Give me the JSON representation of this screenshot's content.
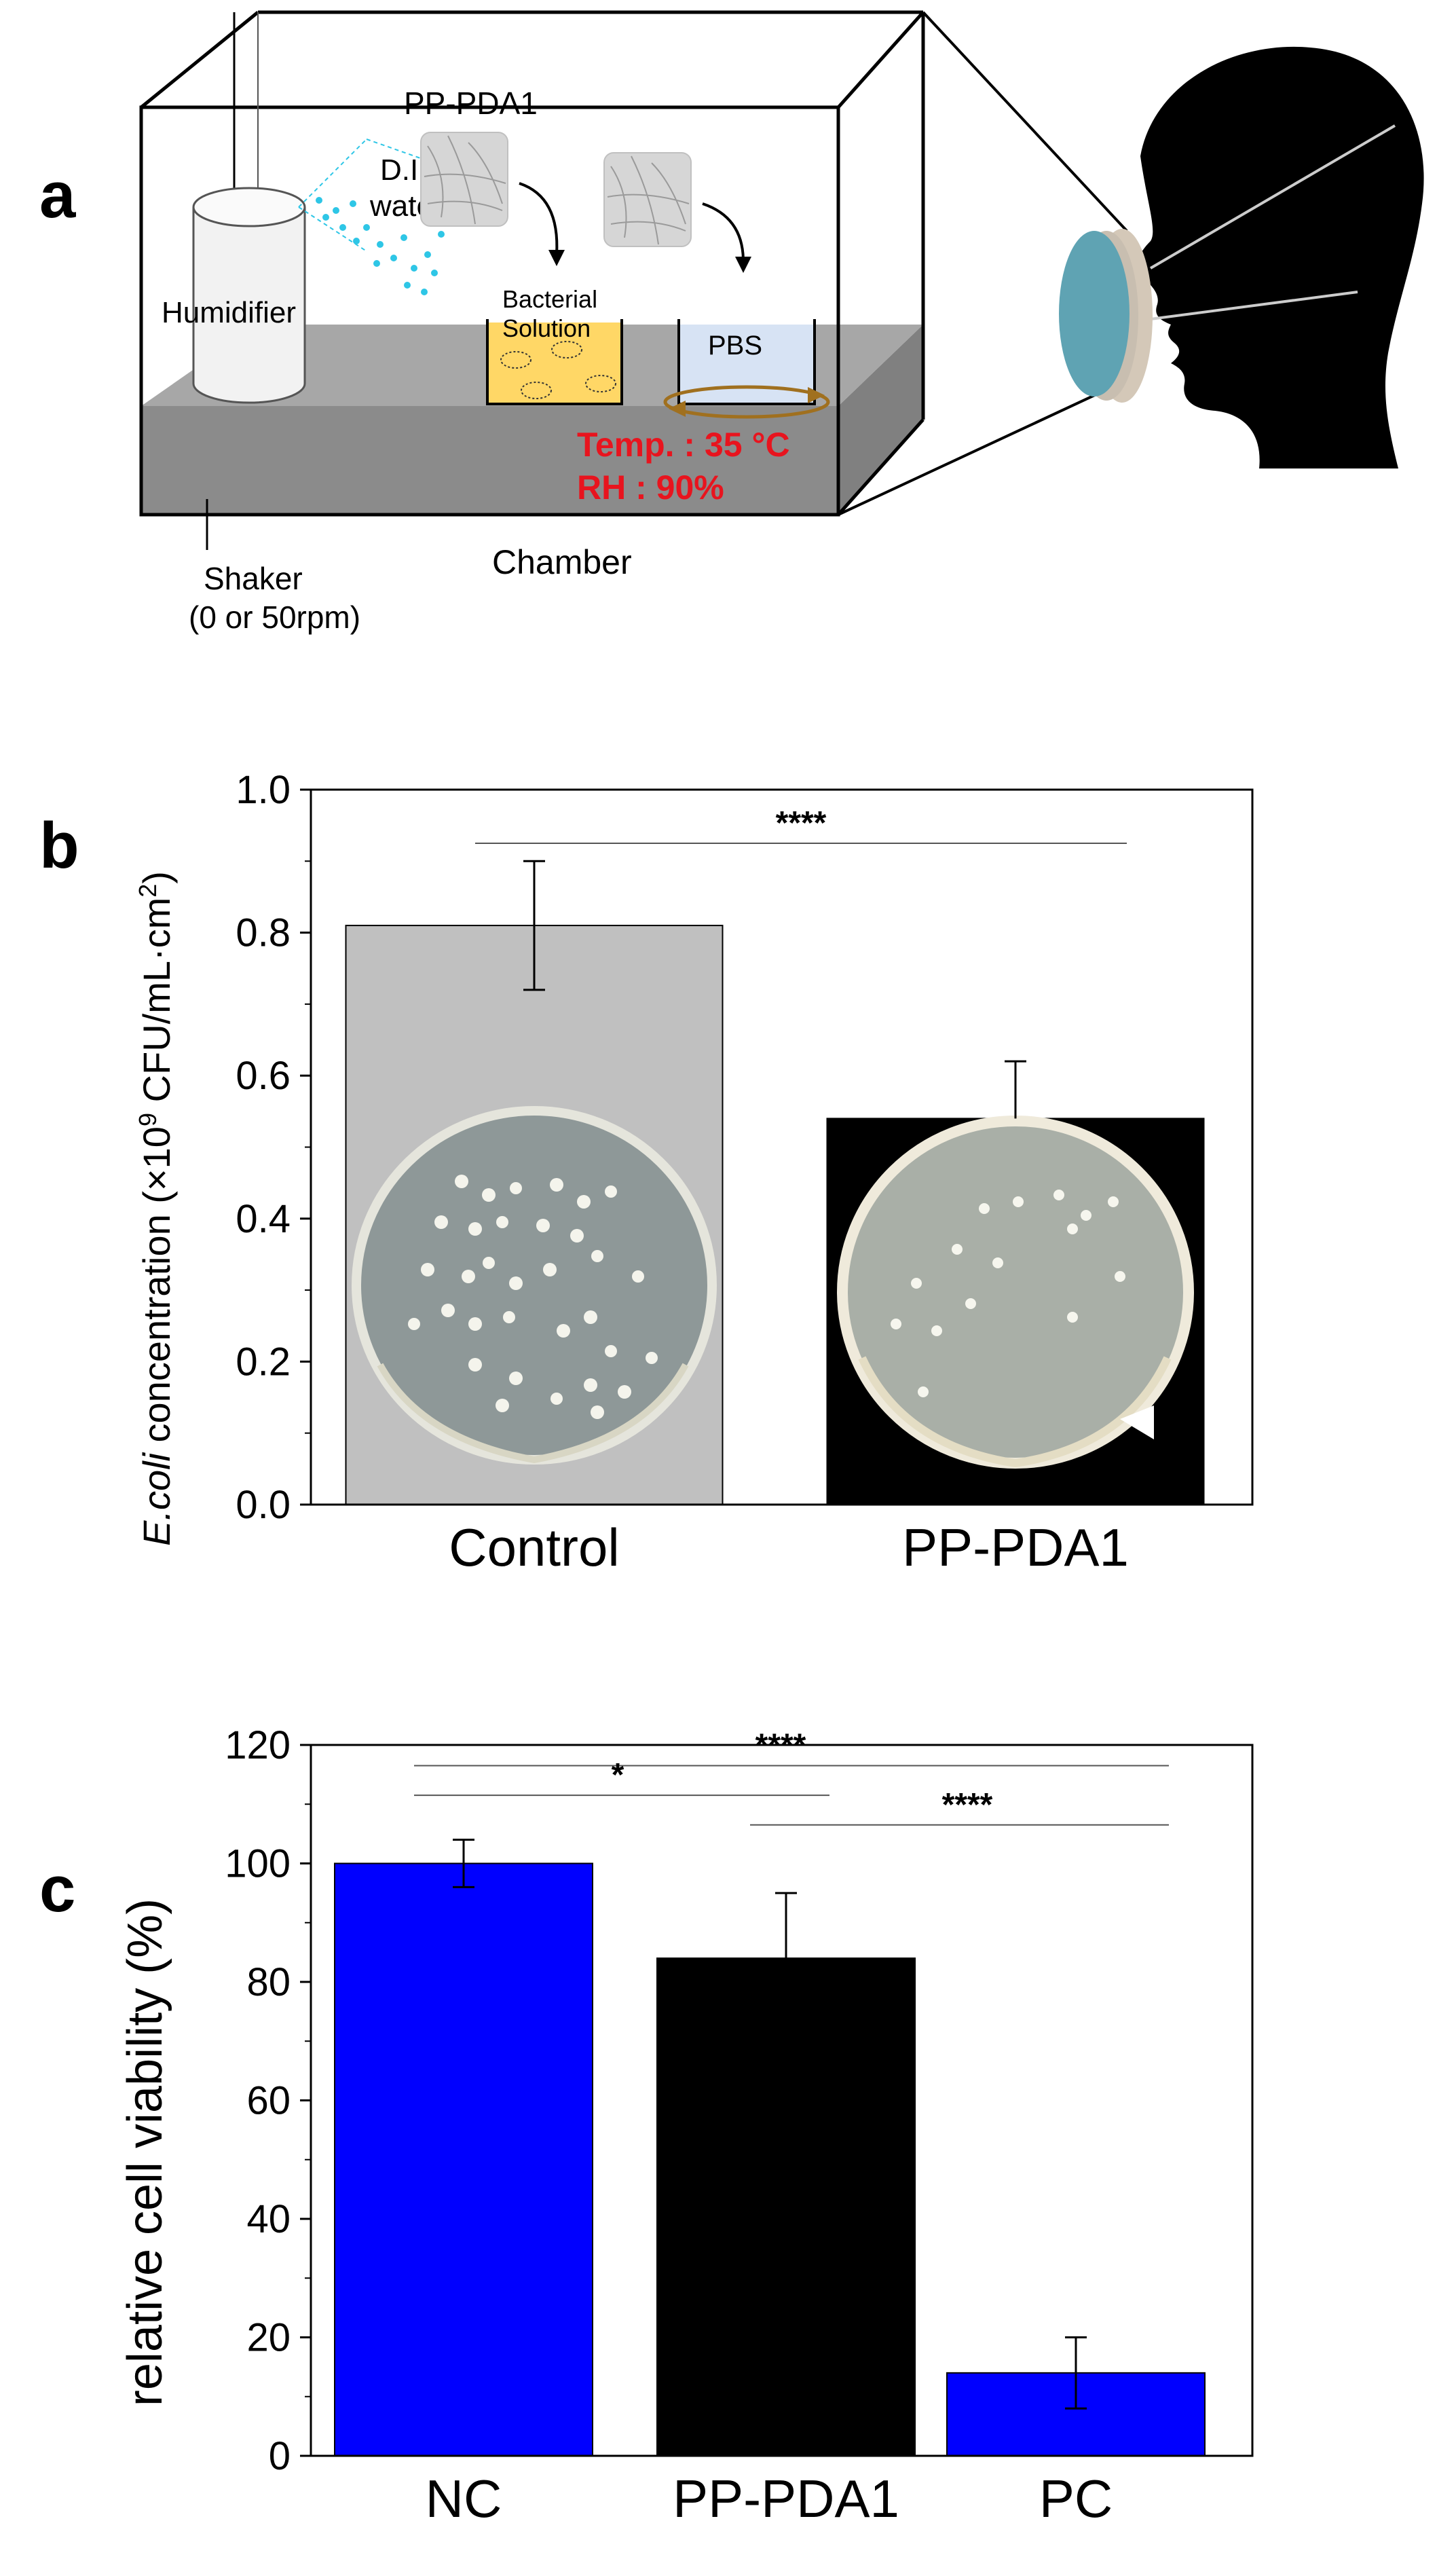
{
  "panel_a": {
    "letter": "a",
    "labels": {
      "pp_pda1": "PP-PDA1",
      "di_line1": "D.I.",
      "di_line2": "water",
      "humidifier": "Humidifier",
      "bacterial_line1": "Bacterial",
      "bacterial_line2": "Solution",
      "pbs": "PBS",
      "temp": "Temp. : 35 °C",
      "rh": "RH : 90%",
      "shaker_line1": "Shaker",
      "shaker_line2": "(0 or 50rpm)",
      "chamber": "Chamber"
    },
    "colors": {
      "red_text": "#e8141e",
      "water_dots": "#2ec6e6",
      "bacterial_solution": "#ffd766",
      "pbs_solution": "#d7e3f4",
      "mask_blue": "#5fa3b3",
      "arrow_brown": "#a0701f"
    }
  },
  "chart_data": [
    {
      "panel": "b",
      "type": "bar",
      "categories": [
        "Control",
        "PP-PDA1"
      ],
      "values": [
        0.81,
        0.54
      ],
      "errors": [
        0.09,
        0.08
      ],
      "error_direction": [
        "both",
        "up"
      ],
      "bar_colors": [
        "#c0c0c0",
        "#000000"
      ],
      "ylabel_italic": "E.coli",
      "ylabel_rest": " concentration (×10",
      "ylabel_sup1": "9",
      "ylabel_mid": " CFU/mL·cm",
      "ylabel_sup2": "2",
      "ylabel_end": ")",
      "ylim": [
        0,
        1.0
      ],
      "yticks": [
        "0.0",
        "0.2",
        "0.4",
        "0.6",
        "0.8",
        "1.0"
      ],
      "significance": [
        {
          "from": "Control",
          "to": "PP-PDA1",
          "label": "****"
        }
      ],
      "grid": false
    },
    {
      "panel": "c",
      "type": "bar",
      "categories": [
        "NC",
        "PP-PDA1",
        "PC"
      ],
      "values": [
        100,
        84,
        14
      ],
      "errors": [
        4,
        11,
        6
      ],
      "bar_colors": [
        "#0000ff",
        "#000000",
        "#0000ff"
      ],
      "ylabel": "relative cell viability (%)",
      "ylim": [
        0,
        120
      ],
      "yticks": [
        "0",
        "20",
        "40",
        "60",
        "80",
        "100",
        "120"
      ],
      "significance": [
        {
          "from": "NC",
          "to": "PC",
          "label": "****"
        },
        {
          "from": "NC",
          "to": "PP-PDA1",
          "label": "*"
        },
        {
          "from": "PP-PDA1",
          "to": "PC",
          "label": "****"
        }
      ],
      "grid": false
    }
  ]
}
